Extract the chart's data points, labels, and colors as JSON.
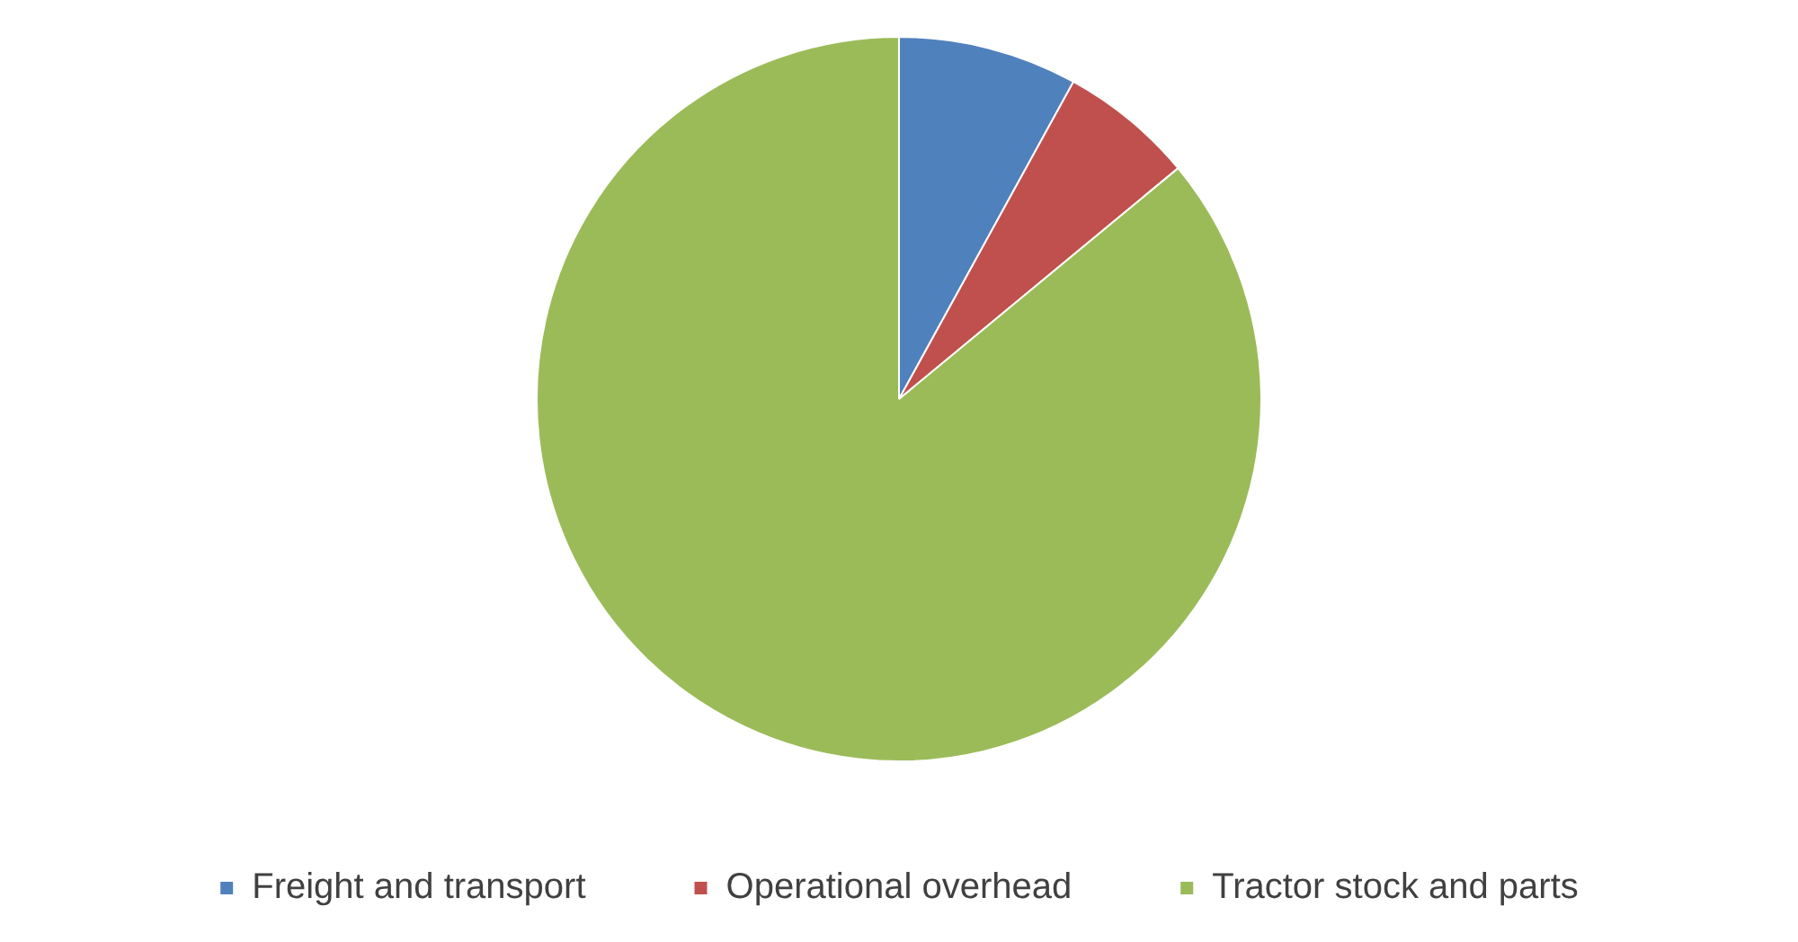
{
  "chart_data": {
    "type": "pie",
    "categories": [
      "Freight and transport",
      "Operational overhead",
      "Tractor stock and parts"
    ],
    "values": [
      8,
      6,
      86
    ],
    "colors": [
      "#4f81bd",
      "#c0504d",
      "#9bbb59"
    ],
    "legend": "bottom"
  }
}
